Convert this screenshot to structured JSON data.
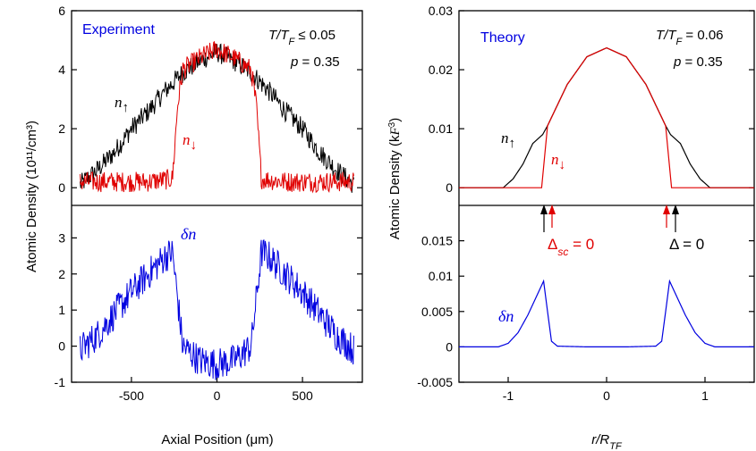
{
  "chart_data": [
    {
      "type": "line",
      "panel": "top-left",
      "title": "Experiment",
      "annotations": [
        "T/T_F ≤ 0.05",
        "p = 0.35"
      ],
      "ylabel": "Atomic Density (10^11/cm^3)",
      "xlim": [
        -850,
        850
      ],
      "ylim": [
        -0.6,
        6
      ],
      "yticks": [
        "0",
        "2",
        "4",
        "6"
      ],
      "series": [
        {
          "name": "n↑",
          "color": "#000000",
          "x": [
            -800,
            -700,
            -600,
            -500,
            -400,
            -300,
            -200,
            -100,
            0,
            100,
            200,
            300,
            400,
            500,
            600,
            700,
            800
          ],
          "values": [
            0.1,
            0.6,
            1.2,
            2.0,
            2.6,
            3.3,
            3.9,
            4.3,
            4.6,
            4.3,
            3.9,
            3.3,
            2.6,
            2.0,
            1.2,
            0.6,
            0.1
          ]
        },
        {
          "name": "n↓",
          "color": "#e00000",
          "x": [
            -800,
            -600,
            -400,
            -260,
            -230,
            -200,
            -100,
            0,
            100,
            200,
            230,
            260,
            400,
            600,
            800
          ],
          "values": [
            0.2,
            0.2,
            0.2,
            0.3,
            2.8,
            4.0,
            4.4,
            4.7,
            4.4,
            4.0,
            2.8,
            0.3,
            0.2,
            0.2,
            0.2
          ]
        }
      ]
    },
    {
      "type": "line",
      "panel": "bottom-left",
      "xlabel": "Axial Position (μm)",
      "xlim": [
        -850,
        850
      ],
      "ylim": [
        -1,
        3.9
      ],
      "xticks": [
        "-500",
        "0",
        "500"
      ],
      "yticks": [
        "-1",
        "0",
        "1",
        "2",
        "3"
      ],
      "series": [
        {
          "name": "δn",
          "color": "#0000e0",
          "x": [
            -800,
            -700,
            -600,
            -500,
            -400,
            -300,
            -260,
            -200,
            -100,
            0,
            100,
            200,
            260,
            300,
            400,
            500,
            600,
            700,
            800
          ],
          "values": [
            -0.1,
            0.3,
            0.9,
            1.5,
            2.0,
            2.5,
            2.6,
            0.0,
            -0.4,
            -0.5,
            -0.4,
            0.0,
            2.6,
            2.5,
            2.0,
            1.5,
            0.9,
            0.3,
            -0.1
          ]
        }
      ]
    },
    {
      "type": "line",
      "panel": "top-right",
      "title": "Theory",
      "annotations": [
        "T/T_F = 0.06",
        "p = 0.35"
      ],
      "ylabel": "Atomic Density (k_F^3)",
      "xlim": [
        -1.5,
        1.5
      ],
      "ylim": [
        -0.003,
        0.03
      ],
      "yticks": [
        "0",
        "0.01",
        "0.02",
        "0.03"
      ],
      "series": [
        {
          "name": "n↑",
          "color": "#000000",
          "x": [
            -1.5,
            -1.05,
            -0.95,
            -0.85,
            -0.75,
            -0.65,
            -0.6,
            -0.4,
            -0.2,
            0,
            0.2,
            0.4,
            0.6,
            0.65,
            0.75,
            0.85,
            0.95,
            1.05,
            1.5
          ],
          "values": [
            0,
            0.0,
            0.0015,
            0.004,
            0.0075,
            0.009,
            0.0105,
            0.0175,
            0.0222,
            0.0237,
            0.0222,
            0.0175,
            0.0105,
            0.009,
            0.0075,
            0.004,
            0.0015,
            0.0,
            0
          ]
        },
        {
          "name": "n↓",
          "color": "#e00000",
          "x": [
            -1.5,
            -0.66,
            -0.6,
            -0.4,
            -0.2,
            0,
            0.2,
            0.4,
            0.6,
            0.66,
            1.5
          ],
          "values": [
            0,
            0,
            0.0105,
            0.0175,
            0.0222,
            0.0237,
            0.0222,
            0.0175,
            0.0105,
            0,
            0
          ]
        }
      ]
    },
    {
      "type": "line",
      "panel": "bottom-right",
      "xlabel": "r/R_TF",
      "xlim": [
        -1.5,
        1.5
      ],
      "ylim": [
        -0.005,
        0.02
      ],
      "xticks": [
        "-1",
        "0",
        "1"
      ],
      "yticks": [
        "-0.005",
        "0",
        "0.005",
        "0.01",
        "0.015"
      ],
      "annotations": [
        "Δsc = 0",
        "Δ = 0"
      ],
      "series": [
        {
          "name": "δn",
          "color": "#0000e0",
          "x": [
            -1.5,
            -1.1,
            -1.0,
            -0.9,
            -0.8,
            -0.7,
            -0.64,
            -0.6,
            -0.56,
            -0.5,
            -0.2,
            0,
            0.2,
            0.5,
            0.56,
            0.6,
            0.64,
            0.7,
            0.8,
            0.9,
            1.0,
            1.1,
            1.5
          ],
          "values": [
            0,
            0,
            0.0005,
            0.002,
            0.0045,
            0.0075,
            0.0093,
            0.005,
            0.0008,
            0.0001,
            0,
            0,
            0,
            0.0001,
            0.0008,
            0.005,
            0.0093,
            0.0075,
            0.0045,
            0.002,
            0.0005,
            0,
            0
          ]
        }
      ]
    }
  ],
  "labels": {
    "left_ylabel": "Atomic Density (10¹¹/cm³)",
    "right_ylabel": "Atomic Density (k",
    "experiment": "Experiment",
    "theory": "Theory",
    "exp_temp": "T/T",
    "exp_temp_rest": " ≤ 0.05",
    "th_temp_rest": " = 0.06",
    "p_label": "p",
    "p_value": " = 0.35",
    "left_xlabel": "Axial Position (μm)",
    "right_xlabel": "r/R",
    "n_up": "n",
    "n_down": "n",
    "dn": "δn",
    "delta_sc": "Δ",
    "delta_sc_rest": " = 0",
    "delta": "Δ = 0"
  }
}
